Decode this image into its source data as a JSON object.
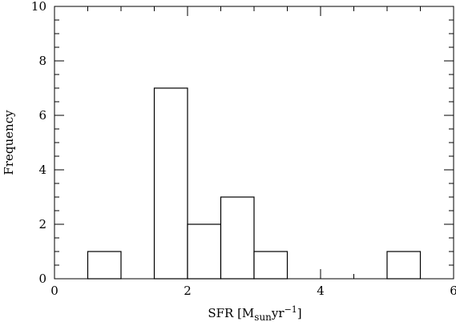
{
  "chart_data": {
    "type": "histogram",
    "xlabel": {
      "main": "SFR [M",
      "sub": "sun",
      "mid": "yr",
      "sup": "−1",
      "end": "]"
    },
    "ylabel": "Frequency",
    "bins": [
      0.5,
      1,
      1.5,
      2,
      2.5,
      3,
      3.5,
      4,
      4.5,
      5,
      5.5
    ],
    "values": [
      1,
      0,
      7,
      2,
      3,
      1,
      0,
      0,
      0,
      1
    ],
    "color": "#ffffff",
    "xlim": [
      0,
      6
    ],
    "ylim": [
      0,
      10
    ],
    "xticks": [
      0,
      2,
      4,
      6
    ],
    "yticks": [
      0,
      2,
      4,
      6,
      8,
      10
    ],
    "xminorticks": [
      0.5,
      1,
      1.5,
      2.5,
      3,
      3.5,
      4.5,
      5,
      5.5
    ],
    "yminorticks": [
      0.5,
      1,
      1.5,
      2.5,
      3,
      3.5,
      4.5,
      5,
      5.5,
      6.5,
      7,
      7.5,
      8.5,
      9,
      9.5
    ]
  }
}
